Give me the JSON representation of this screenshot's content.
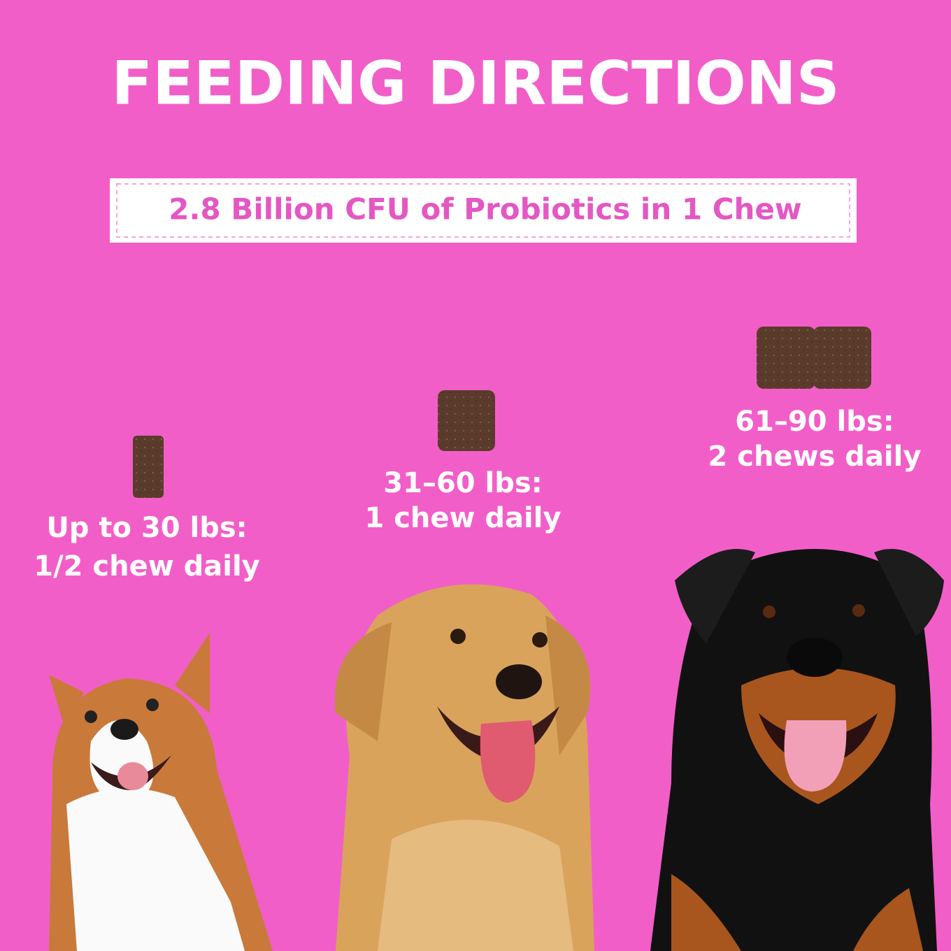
{
  "header": {
    "title": "FEEDING DIRECTIONS",
    "subtitle": "2.8 Billion CFU of Probiotics in 1 Chew"
  },
  "tiers": [
    {
      "weight": "Up to 30 lbs:",
      "dose": "1/2 chew daily"
    },
    {
      "weight": "31–60 lbs:",
      "dose": "1 chew daily"
    },
    {
      "weight": "61–90 lbs:",
      "dose": "2 chews daily"
    }
  ]
}
